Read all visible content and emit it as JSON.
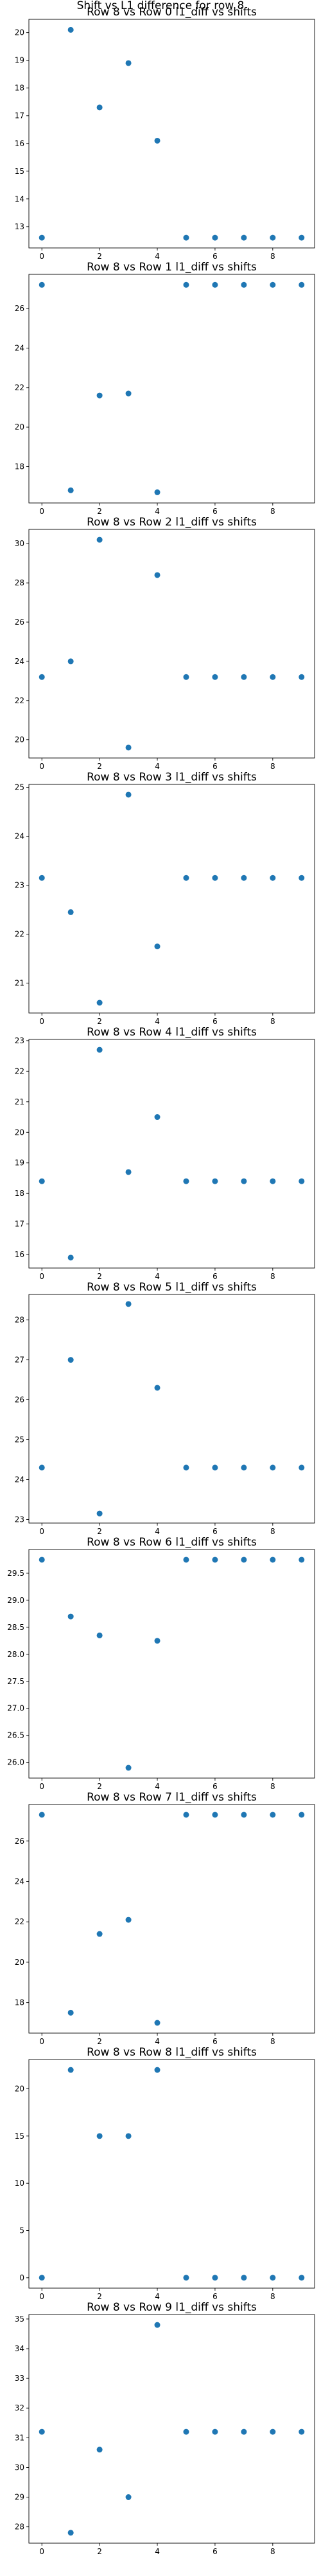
{
  "figure": {
    "suptitle": "Shift vs L1 difference for row 8",
    "marker_color": "#1f77b4"
  },
  "chart_data": [
    {
      "type": "scatter",
      "title": "Row 8 vs Row 0 l1_diff vs shifts",
      "x": [
        0,
        1,
        2,
        3,
        4,
        5,
        6,
        7,
        8,
        9
      ],
      "y": [
        12.6,
        20.1,
        17.3,
        18.9,
        16.1,
        12.6,
        12.6,
        12.6,
        12.6,
        12.6
      ],
      "xlim": [
        -0.45,
        9.45
      ],
      "ylim": [
        12.23,
        20.48
      ],
      "xticks": [
        0,
        2,
        4,
        6,
        8
      ],
      "yticks": [
        13,
        14,
        15,
        16,
        17,
        18,
        19,
        20
      ]
    },
    {
      "type": "scatter",
      "title": "Row 8 vs Row 1 l1_diff vs shifts",
      "x": [
        0,
        1,
        2,
        3,
        4,
        5,
        6,
        7,
        8,
        9
      ],
      "y": [
        27.2,
        16.8,
        21.6,
        21.7,
        16.7,
        27.2,
        27.2,
        27.2,
        27.2,
        27.2
      ],
      "xlim": [
        -0.45,
        9.45
      ],
      "ylim": [
        16.16,
        27.73
      ],
      "xticks": [
        0,
        2,
        4,
        6,
        8
      ],
      "yticks": [
        18,
        20,
        22,
        24,
        26
      ]
    },
    {
      "type": "scatter",
      "title": "Row 8 vs Row 2 l1_diff vs shifts",
      "x": [
        0,
        1,
        2,
        3,
        4,
        5,
        6,
        7,
        8,
        9
      ],
      "y": [
        23.2,
        24.0,
        30.2,
        19.6,
        28.4,
        23.2,
        23.2,
        23.2,
        23.2,
        23.2
      ],
      "xlim": [
        -0.45,
        9.45
      ],
      "ylim": [
        19.07,
        30.73
      ],
      "xticks": [
        0,
        2,
        4,
        6,
        8
      ],
      "yticks": [
        20,
        22,
        24,
        26,
        28,
        30
      ]
    },
    {
      "type": "scatter",
      "title": "Row 8 vs Row 3 l1_diff vs shifts",
      "x": [
        0,
        1,
        2,
        3,
        4,
        5,
        6,
        7,
        8,
        9
      ],
      "y": [
        23.15,
        22.45,
        20.6,
        24.85,
        21.75,
        23.15,
        23.15,
        23.15,
        23.15,
        23.15
      ],
      "xlim": [
        -0.45,
        9.45
      ],
      "ylim": [
        20.39,
        25.06
      ],
      "xticks": [
        0,
        2,
        4,
        6,
        8
      ],
      "yticks": [
        21,
        22,
        23,
        24,
        25
      ]
    },
    {
      "type": "scatter",
      "title": "Row 8 vs Row 4 l1_diff vs shifts",
      "x": [
        0,
        1,
        2,
        3,
        4,
        5,
        6,
        7,
        8,
        9
      ],
      "y": [
        18.4,
        15.9,
        22.7,
        18.7,
        20.5,
        18.4,
        18.4,
        18.4,
        18.4,
        18.4
      ],
      "xlim": [
        -0.45,
        9.45
      ],
      "ylim": [
        15.56,
        23.04
      ],
      "xticks": [
        0,
        2,
        4,
        6,
        8
      ],
      "yticks": [
        16,
        17,
        18,
        19,
        20,
        21,
        22,
        23
      ]
    },
    {
      "type": "scatter",
      "title": "Row 8 vs Row 5 l1_diff vs shifts",
      "x": [
        0,
        1,
        2,
        3,
        4,
        5,
        6,
        7,
        8,
        9
      ],
      "y": [
        24.3,
        27.0,
        23.15,
        28.4,
        26.3,
        24.3,
        24.3,
        24.3,
        24.3,
        24.3
      ],
      "xlim": [
        -0.45,
        9.45
      ],
      "ylim": [
        22.91,
        28.64
      ],
      "xticks": [
        0,
        2,
        4,
        6,
        8
      ],
      "yticks": [
        23,
        24,
        25,
        26,
        27,
        28
      ]
    },
    {
      "type": "scatter",
      "title": "Row 8 vs Row 6 l1_diff vs shifts",
      "x": [
        0,
        1,
        2,
        3,
        4,
        5,
        6,
        7,
        8,
        9
      ],
      "y": [
        29.75,
        28.7,
        28.35,
        25.9,
        28.25,
        29.75,
        29.75,
        29.75,
        29.75,
        29.75
      ],
      "xlim": [
        -0.45,
        9.45
      ],
      "ylim": [
        25.71,
        29.94
      ],
      "xticks": [
        0,
        2,
        4,
        6,
        8
      ],
      "yticks": [
        26.0,
        26.5,
        27.0,
        27.5,
        28.0,
        28.5,
        29.0,
        29.5
      ]
    },
    {
      "type": "scatter",
      "title": "Row 8 vs Row 7 l1_diff vs shifts",
      "x": [
        0,
        1,
        2,
        3,
        4,
        5,
        6,
        7,
        8,
        9
      ],
      "y": [
        27.3,
        17.5,
        21.4,
        22.1,
        17.0,
        27.3,
        27.3,
        27.3,
        27.3,
        27.3
      ],
      "xlim": [
        -0.45,
        9.45
      ],
      "ylim": [
        16.49,
        27.81
      ],
      "xticks": [
        0,
        2,
        4,
        6,
        8
      ],
      "yticks": [
        18,
        20,
        22,
        24,
        26
      ]
    },
    {
      "type": "scatter",
      "title": "Row 8 vs Row 8 l1_diff vs shifts",
      "x": [
        0,
        1,
        2,
        3,
        4,
        5,
        6,
        7,
        8,
        9
      ],
      "y": [
        0,
        22.0,
        15.0,
        15.0,
        22.0,
        0,
        0,
        0,
        0,
        0
      ],
      "xlim": [
        -0.45,
        9.45
      ],
      "ylim": [
        -1.1,
        23.1
      ],
      "xticks": [
        0,
        2,
        4,
        6,
        8
      ],
      "yticks": [
        0,
        5,
        10,
        15,
        20
      ]
    },
    {
      "type": "scatter",
      "title": "Row 8 vs Row 9 l1_diff vs shifts",
      "x": [
        0,
        1,
        2,
        3,
        4,
        5,
        6,
        7,
        8,
        9
      ],
      "y": [
        31.2,
        27.8,
        30.6,
        29.0,
        34.8,
        31.2,
        31.2,
        31.2,
        31.2,
        31.2
      ],
      "xlim": [
        -0.45,
        9.45
      ],
      "ylim": [
        27.45,
        35.15
      ],
      "xticks": [
        0,
        2,
        4,
        6,
        8
      ],
      "yticks": [
        28,
        29,
        30,
        31,
        32,
        33,
        34,
        35
      ]
    }
  ]
}
